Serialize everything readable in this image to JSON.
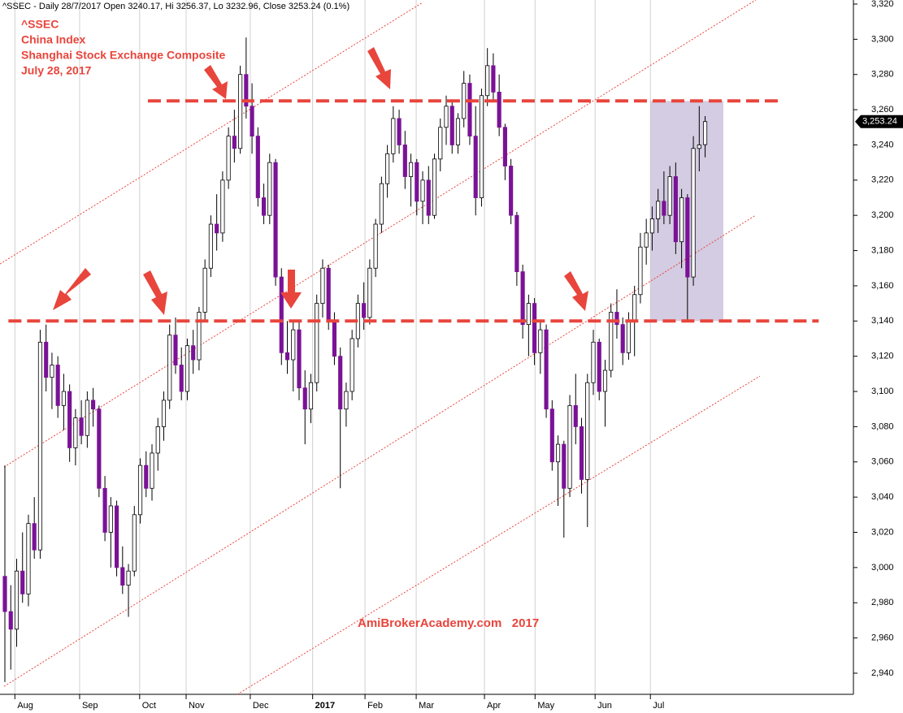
{
  "chart_data": {
    "type": "candlestick",
    "title": "^SSEC - Daily 28/7/2017 Open 3240.17, Hi 3256.37, Lo 3232.96, Close 3253.24 (0.1%)",
    "annotations": [
      "^SSEC",
      "China Index",
      "Shanghai Stock Exchange Composite",
      "July 28, 2017"
    ],
    "watermark": "AmiBrokerAcademy.com   2017",
    "last_label": {
      "value": 3253.24,
      "label": "3,253.24"
    },
    "up_color": "#ffffff",
    "down_color": "#7a1296",
    "line_color": "#e8453c",
    "grid": true,
    "xlim": [
      -0.83,
      144.2
    ],
    "xticks": [
      {
        "value": 1.7,
        "label": "Aug"
      },
      {
        "value": 12.7,
        "label": "Sep"
      },
      {
        "value": 22.9,
        "label": "Oct"
      },
      {
        "value": 30.8,
        "label": "Nov"
      },
      {
        "value": 41.7,
        "label": "Dec"
      },
      {
        "value": 52.3,
        "label": "2017"
      },
      {
        "value": 61.2,
        "label": "Feb"
      },
      {
        "value": 69.9,
        "label": "Mar"
      },
      {
        "value": 81.5,
        "label": "Apr"
      },
      {
        "value": 90.1,
        "label": "May"
      },
      {
        "value": 100.3,
        "label": "Jun"
      },
      {
        "value": 109.7,
        "label": "Jul"
      }
    ],
    "ylim": [
      2928,
      3322.3
    ],
    "yticks": [
      {
        "value": 2940,
        "label": "2,940"
      },
      {
        "value": 2960,
        "label": "2,960"
      },
      {
        "value": 2980,
        "label": "2,980"
      },
      {
        "value": 3000,
        "label": "3,000"
      },
      {
        "value": 3020,
        "label": "3,020"
      },
      {
        "value": 3040,
        "label": "3,040"
      },
      {
        "value": 3060,
        "label": "3,060"
      },
      {
        "value": 3080,
        "label": "3,080"
      },
      {
        "value": 3100,
        "label": "3,100"
      },
      {
        "value": 3120,
        "label": "3,120"
      },
      {
        "value": 3140,
        "label": "3,140"
      },
      {
        "value": 3160,
        "label": "3,160"
      },
      {
        "value": 3180,
        "label": "3,180"
      },
      {
        "value": 3200,
        "label": "3,200"
      },
      {
        "value": 3220,
        "label": "3,220"
      },
      {
        "value": 3240,
        "label": "3,240"
      },
      {
        "value": 3260,
        "label": "3,260"
      },
      {
        "value": 3280,
        "label": "3,280"
      },
      {
        "value": 3300,
        "label": "3,300"
      },
      {
        "value": 3320,
        "label": "3,320"
      }
    ],
    "levels": [
      {
        "y": 3265,
        "x": [
          24.3,
          131.4
        ]
      },
      {
        "y": 3140,
        "x": [
          0.6,
          138.3
        ]
      }
    ],
    "zone": {
      "x": [
        109.7,
        122.1
      ],
      "y": [
        3140,
        3265
      ]
    },
    "channels": [
      {
        "x": [
          -0.83,
          71.0
        ],
        "y": [
          3172.4,
          3320.9
        ]
      },
      {
        "x": [
          -0.14,
          127.6
        ],
        "y": [
          3057.1,
          3322.3
        ]
      },
      {
        "x": [
          -0.14,
          127.6
        ],
        "y": [
          2932.5,
          3200.1
        ]
      },
      {
        "x": [
          39.5,
          128.3
        ],
        "y": [
          2928,
          3108.7
        ]
      }
    ],
    "ohlc": [
      [
        2995,
        3058,
        2935,
        2975
      ],
      [
        2975,
        2990,
        2942,
        2965
      ],
      [
        2965,
        3005,
        2955,
        2998
      ],
      [
        2998,
        3020,
        2980,
        2985
      ],
      [
        2985,
        3030,
        2978,
        3025
      ],
      [
        3025,
        3040,
        3005,
        3010
      ],
      [
        3010,
        3135,
        3005,
        3128
      ],
      [
        3128,
        3138,
        3100,
        3108
      ],
      [
        3108,
        3122,
        3090,
        3115
      ],
      [
        3115,
        3120,
        3085,
        3092
      ],
      [
        3092,
        3110,
        3078,
        3100
      ],
      [
        3100,
        3104,
        3060,
        3068
      ],
      [
        3068,
        3090,
        3058,
        3085
      ],
      [
        3085,
        3095,
        3070,
        3075
      ],
      [
        3075,
        3100,
        3068,
        3095
      ],
      [
        3095,
        3102,
        3080,
        3090
      ],
      [
        3090,
        3092,
        3040,
        3045
      ],
      [
        3045,
        3052,
        3015,
        3020
      ],
      [
        3020,
        3040,
        3000,
        3035
      ],
      [
        3035,
        3038,
        2995,
        3000
      ],
      [
        3000,
        3012,
        2985,
        2990
      ],
      [
        2990,
        3002,
        2972,
        2998
      ],
      [
        2998,
        3035,
        2995,
        3030
      ],
      [
        3030,
        3062,
        3025,
        3058
      ],
      [
        3058,
        3066,
        3040,
        3045
      ],
      [
        3045,
        3070,
        3038,
        3065
      ],
      [
        3065,
        3085,
        3055,
        3080
      ],
      [
        3080,
        3100,
        3072,
        3095
      ],
      [
        3095,
        3138,
        3090,
        3132
      ],
      [
        3132,
        3142,
        3110,
        3115
      ],
      [
        3115,
        3125,
        3095,
        3100
      ],
      [
        3100,
        3130,
        3095,
        3126
      ],
      [
        3126,
        3135,
        3110,
        3118
      ],
      [
        3118,
        3148,
        3112,
        3145
      ],
      [
        3145,
        3175,
        3140,
        3170
      ],
      [
        3170,
        3200,
        3165,
        3195
      ],
      [
        3195,
        3212,
        3180,
        3190
      ],
      [
        3190,
        3225,
        3185,
        3220
      ],
      [
        3220,
        3250,
        3215,
        3245
      ],
      [
        3245,
        3260,
        3230,
        3238
      ],
      [
        3238,
        3285,
        3235,
        3280
      ],
      [
        3280,
        3301,
        3255,
        3262
      ],
      [
        3262,
        3275,
        3235,
        3245
      ],
      [
        3245,
        3250,
        3205,
        3210
      ],
      [
        3210,
        3218,
        3195,
        3200
      ],
      [
        3200,
        3235,
        3195,
        3230
      ],
      [
        3230,
        3232,
        3160,
        3165
      ],
      [
        3165,
        3170,
        3115,
        3122
      ],
      [
        3122,
        3140,
        3110,
        3118
      ],
      [
        3118,
        3140,
        3100,
        3135
      ],
      [
        3135,
        3140,
        3095,
        3102
      ],
      [
        3102,
        3112,
        3070,
        3090
      ],
      [
        3090,
        3110,
        3082,
        3105
      ],
      [
        3105,
        3155,
        3100,
        3150
      ],
      [
        3150,
        3175,
        3142,
        3170
      ],
      [
        3170,
        3172,
        3135,
        3140
      ],
      [
        3140,
        3145,
        3115,
        3120
      ],
      [
        3120,
        3125,
        3045,
        3090
      ],
      [
        3090,
        3105,
        3080,
        3100
      ],
      [
        3100,
        3135,
        3095,
        3130
      ],
      [
        3130,
        3155,
        3125,
        3150
      ],
      [
        3150,
        3162,
        3135,
        3142
      ],
      [
        3142,
        3175,
        3138,
        3170
      ],
      [
        3170,
        3198,
        3165,
        3195
      ],
      [
        3195,
        3222,
        3190,
        3218
      ],
      [
        3218,
        3240,
        3210,
        3235
      ],
      [
        3235,
        3262,
        3230,
        3255
      ],
      [
        3255,
        3260,
        3235,
        3240
      ],
      [
        3240,
        3248,
        3215,
        3222
      ],
      [
        3222,
        3235,
        3205,
        3230
      ],
      [
        3230,
        3232,
        3200,
        3208
      ],
      [
        3208,
        3225,
        3195,
        3220
      ],
      [
        3220,
        3228,
        3195,
        3200
      ],
      [
        3200,
        3235,
        3198,
        3232
      ],
      [
        3232,
        3255,
        3225,
        3250
      ],
      [
        3250,
        3268,
        3240,
        3262
      ],
      [
        3262,
        3265,
        3235,
        3240
      ],
      [
        3240,
        3258,
        3235,
        3255
      ],
      [
        3255,
        3282,
        3250,
        3275
      ],
      [
        3275,
        3280,
        3240,
        3245
      ],
      [
        3245,
        3262,
        3200,
        3210
      ],
      [
        3210,
        3272,
        3205,
        3268
      ],
      [
        3268,
        3295,
        3262,
        3285
      ],
      [
        3285,
        3292,
        3265,
        3270
      ],
      [
        3270,
        3280,
        3245,
        3250
      ],
      [
        3250,
        3252,
        3220,
        3228
      ],
      [
        3228,
        3232,
        3195,
        3200
      ],
      [
        3200,
        3202,
        3160,
        3168
      ],
      [
        3168,
        3172,
        3130,
        3138
      ],
      [
        3138,
        3155,
        3120,
        3150
      ],
      [
        3150,
        3153,
        3115,
        3122
      ],
      [
        3122,
        3140,
        3110,
        3135
      ],
      [
        3135,
        3138,
        3085,
        3090
      ],
      [
        3090,
        3095,
        3055,
        3060
      ],
      [
        3060,
        3075,
        3035,
        3070
      ],
      [
        3070,
        3072,
        3017,
        3045
      ],
      [
        3045,
        3098,
        3040,
        3092
      ],
      [
        3092,
        3110,
        3070,
        3080
      ],
      [
        3080,
        3085,
        3042,
        3050
      ],
      [
        3050,
        3110,
        3023,
        3105
      ],
      [
        3105,
        3135,
        3098,
        3128
      ],
      [
        3128,
        3130,
        3095,
        3100
      ],
      [
        3100,
        3118,
        3080,
        3112
      ],
      [
        3112,
        3150,
        3108,
        3145
      ],
      [
        3145,
        3158,
        3130,
        3138
      ],
      [
        3138,
        3142,
        3115,
        3122
      ],
      [
        3122,
        3145,
        3118,
        3140
      ],
      [
        3140,
        3160,
        3120,
        3155
      ],
      [
        3155,
        3190,
        3150,
        3182
      ],
      [
        3182,
        3198,
        3172,
        3190
      ],
      [
        3190,
        3205,
        3180,
        3198
      ],
      [
        3198,
        3215,
        3190,
        3208
      ],
      [
        3208,
        3225,
        3195,
        3200
      ],
      [
        3200,
        3228,
        3195,
        3222
      ],
      [
        3222,
        3230,
        3178,
        3185
      ],
      [
        3185,
        3215,
        3170,
        3210
      ],
      [
        3210,
        3212,
        3140,
        3165
      ],
      [
        3165,
        3245,
        3160,
        3238
      ],
      [
        3238,
        3262,
        3225,
        3240
      ],
      [
        3240.17,
        3256.37,
        3232.96,
        3253.24
      ]
    ]
  }
}
